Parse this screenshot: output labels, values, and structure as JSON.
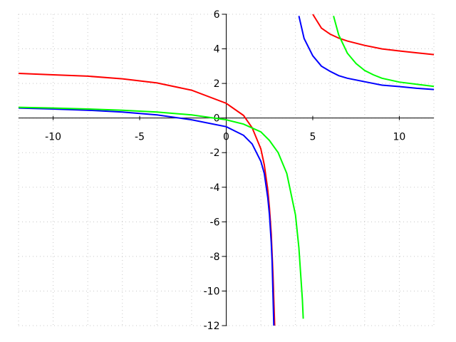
{
  "chart_data": {
    "type": "line",
    "title": "",
    "xlabel": "",
    "ylabel": "",
    "xlim": [
      -12,
      12
    ],
    "ylim": [
      -12,
      6
    ],
    "x_ticks": [
      -10,
      -5,
      0,
      5,
      10
    ],
    "y_ticks": [
      -12,
      -10,
      -8,
      -6,
      -4,
      -2,
      0,
      2,
      4,
      6
    ],
    "x_tick_labels": [
      "-10",
      "-5",
      "0",
      "5",
      "10"
    ],
    "y_tick_labels": [
      "-12",
      "-10",
      "-8",
      "-6",
      "-4",
      "-2",
      "0",
      "2",
      "4",
      "6"
    ],
    "grid": true,
    "legend": "none",
    "series": [
      {
        "color": "#ff0000",
        "segments": [
          [
            [
              -12,
              2.58
            ],
            [
              -10,
              2.5
            ],
            [
              -8,
              2.42
            ],
            [
              -6,
              2.27
            ],
            [
              -4,
              2.03
            ],
            [
              -2,
              1.61
            ],
            [
              0,
              0.85
            ],
            [
              1,
              0.15
            ],
            [
              1.5,
              -0.56
            ],
            [
              2,
              -1.78
            ],
            [
              2.2,
              -2.7
            ],
            [
              2.4,
              -4.15
            ],
            [
              2.5,
              -5.2
            ],
            [
              2.6,
              -6.7
            ],
            [
              2.7,
              -9.0
            ],
            [
              2.75,
              -10.5
            ],
            [
              2.8,
              -12.0
            ]
          ],
          [
            [
              5,
              6.0
            ],
            [
              5.5,
              5.2
            ],
            [
              6,
              4.85
            ],
            [
              6.5,
              4.62
            ],
            [
              7,
              4.45
            ],
            [
              8,
              4.2
            ],
            [
              9,
              4.0
            ],
            [
              10,
              3.88
            ],
            [
              11,
              3.77
            ],
            [
              12,
              3.67
            ]
          ]
        ]
      },
      {
        "color": "#0000ff",
        "segments": [
          [
            [
              -12,
              0.58
            ],
            [
              -10,
              0.52
            ],
            [
              -8,
              0.45
            ],
            [
              -6,
              0.35
            ],
            [
              -4,
              0.18
            ],
            [
              -2,
              -0.1
            ],
            [
              0,
              -0.5
            ],
            [
              1,
              -1.0
            ],
            [
              1.5,
              -1.5
            ],
            [
              2,
              -2.5
            ],
            [
              2.2,
              -3.2
            ],
            [
              2.4,
              -4.6
            ],
            [
              2.5,
              -5.6
            ],
            [
              2.6,
              -7.2
            ],
            [
              2.65,
              -8.3
            ],
            [
              2.75,
              -12.0
            ]
          ],
          [
            [
              4.2,
              5.9
            ],
            [
              4.5,
              4.6
            ],
            [
              5,
              3.6
            ],
            [
              5.5,
              3.0
            ],
            [
              6,
              2.7
            ],
            [
              6.5,
              2.45
            ],
            [
              7,
              2.3
            ],
            [
              8,
              2.1
            ],
            [
              9,
              1.9
            ],
            [
              10,
              1.82
            ],
            [
              11,
              1.72
            ],
            [
              12,
              1.65
            ]
          ]
        ]
      },
      {
        "color": "#00ff00",
        "segments": [
          [
            [
              -12,
              0.62
            ],
            [
              -10,
              0.58
            ],
            [
              -8,
              0.52
            ],
            [
              -6,
              0.45
            ],
            [
              -4,
              0.35
            ],
            [
              -2,
              0.18
            ],
            [
              0,
              -0.1
            ],
            [
              1,
              -0.35
            ],
            [
              2,
              -0.8
            ],
            [
              2.5,
              -1.3
            ],
            [
              3,
              -2.0
            ],
            [
              3.5,
              -3.2
            ],
            [
              4,
              -5.6
            ],
            [
              4.2,
              -7.5
            ],
            [
              4.4,
              -10.5
            ],
            [
              4.45,
              -11.6
            ]
          ],
          [
            [
              6.2,
              5.9
            ],
            [
              6.5,
              4.8
            ],
            [
              7,
              3.75
            ],
            [
              7.5,
              3.15
            ],
            [
              8,
              2.75
            ],
            [
              8.5,
              2.5
            ],
            [
              9,
              2.3
            ],
            [
              10,
              2.08
            ],
            [
              11,
              1.95
            ],
            [
              12,
              1.83
            ]
          ]
        ]
      }
    ]
  }
}
